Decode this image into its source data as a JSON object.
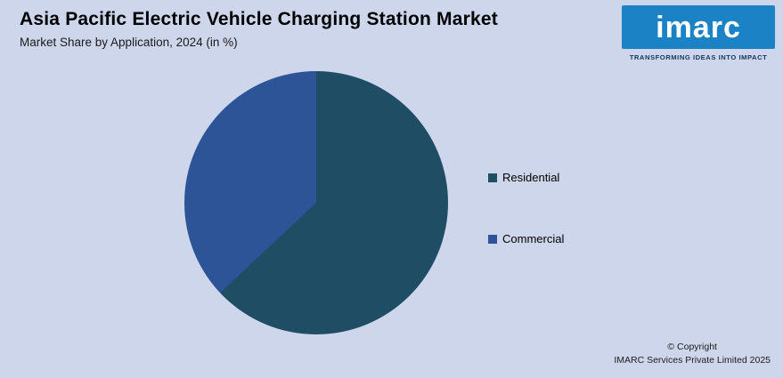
{
  "page": {
    "background_color": "#cdd6eb"
  },
  "header": {
    "title": "Asia Pacific Electric Vehicle Charging Station Market",
    "subtitle": "Market Share by Application, 2024 (in %)"
  },
  "logo": {
    "text": "imarc",
    "tagline": "TRANSFORMING IDEAS INTO IMPACT",
    "bg_color": "#1b82c5"
  },
  "chart_data": {
    "type": "pie",
    "title": "Asia Pacific Electric Vehicle Charging Station Market",
    "subtitle": "Market Share by Application, 2024 (in %)",
    "labels": [
      "Residential",
      "Commercial"
    ],
    "values": [
      63,
      37
    ],
    "colors": [
      "#1f4d64",
      "#2d5496"
    ],
    "start_angle_deg": 0,
    "direction": "clockwise",
    "legend_position": "right",
    "data_labels": false
  },
  "footer": {
    "line1": "© Copyright",
    "line2": "IMARC Services Private Limited 2025"
  }
}
